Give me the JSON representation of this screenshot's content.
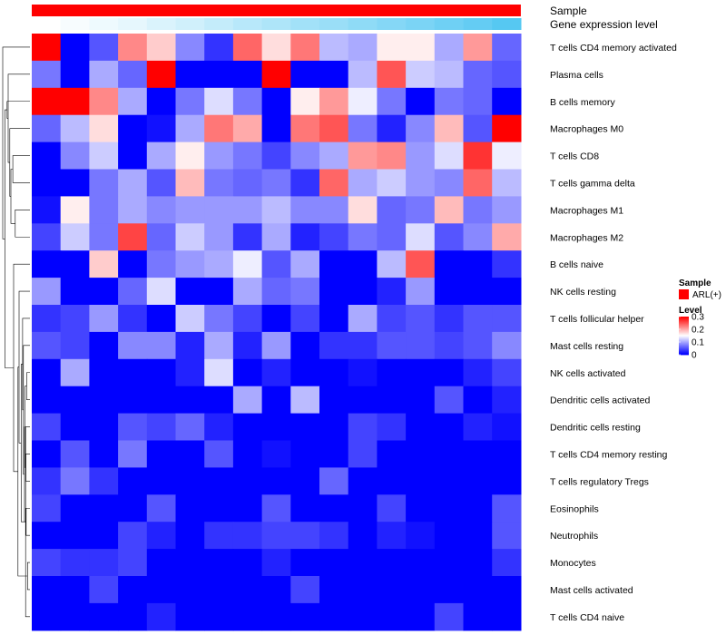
{
  "chart_data": {
    "type": "heatmap",
    "title": "",
    "xlabel": "",
    "ylabel": "",
    "rows": [
      "T cells CD4 memory activated",
      "Plasma cells",
      "B cells memory",
      "Macrophages M0",
      "T cells CD8",
      "T cells gamma delta",
      "Macrophages M1",
      "Macrophages M2",
      "B cells naive",
      "NK cells resting",
      "T cells follicular helper",
      "Mast cells resting",
      "NK cells activated",
      "Dendritic cells activated",
      "Dendritic cells resting",
      "T cells CD4 memory resting",
      "T cells regulatory  Tregs",
      "Eosinophils",
      "Neutrophils",
      "Monocytes",
      "Mast cells activated",
      "T cells CD4 naive"
    ],
    "n_columns": 17,
    "values": [
      [
        0.3,
        0.0,
        0.05,
        0.22,
        0.18,
        0.08,
        0.03,
        0.24,
        0.17,
        0.23,
        0.11,
        0.1,
        0.16,
        0.16,
        0.1,
        0.21,
        0.06
      ],
      [
        0.07,
        0.0,
        0.1,
        0.06,
        0.3,
        0.0,
        0.0,
        0.0,
        0.3,
        0.0,
        0.0,
        0.11,
        0.25,
        0.12,
        0.11,
        0.06,
        0.05
      ],
      [
        0.3,
        0.3,
        0.22,
        0.1,
        0.0,
        0.07,
        0.13,
        0.07,
        0.0,
        0.16,
        0.21,
        0.14,
        0.07,
        0.0,
        0.07,
        0.06,
        0.0
      ],
      [
        0.06,
        0.11,
        0.17,
        0.0,
        0.01,
        0.1,
        0.23,
        0.2,
        0.0,
        0.23,
        0.25,
        0.07,
        0.02,
        0.08,
        0.19,
        0.05,
        0.3
      ],
      [
        0.0,
        0.08,
        0.12,
        0.0,
        0.1,
        0.16,
        0.09,
        0.07,
        0.04,
        0.08,
        0.1,
        0.21,
        0.22,
        0.09,
        0.13,
        0.27,
        0.14
      ],
      [
        0.0,
        0.0,
        0.07,
        0.1,
        0.05,
        0.19,
        0.07,
        0.06,
        0.07,
        0.03,
        0.24,
        0.1,
        0.12,
        0.09,
        0.08,
        0.24,
        0.11
      ],
      [
        0.01,
        0.16,
        0.07,
        0.1,
        0.08,
        0.09,
        0.09,
        0.09,
        0.11,
        0.08,
        0.08,
        0.17,
        0.06,
        0.07,
        0.19,
        0.07,
        0.09
      ],
      [
        0.04,
        0.12,
        0.07,
        0.26,
        0.06,
        0.12,
        0.09,
        0.03,
        0.1,
        0.02,
        0.04,
        0.07,
        0.06,
        0.13,
        0.05,
        0.08,
        0.2
      ],
      [
        0.0,
        0.0,
        0.18,
        0.0,
        0.07,
        0.09,
        0.1,
        0.14,
        0.05,
        0.1,
        0.0,
        0.0,
        0.11,
        0.25,
        0.0,
        0.0,
        0.03
      ],
      [
        0.09,
        0.0,
        0.0,
        0.06,
        0.13,
        0.0,
        0.0,
        0.1,
        0.06,
        0.07,
        0.0,
        0.0,
        0.02,
        0.09,
        0.0,
        0.0,
        0.0
      ],
      [
        0.03,
        0.04,
        0.09,
        0.03,
        0.0,
        0.12,
        0.07,
        0.04,
        0.0,
        0.04,
        0.0,
        0.1,
        0.04,
        0.05,
        0.03,
        0.05,
        0.05
      ],
      [
        0.05,
        0.04,
        0.0,
        0.08,
        0.08,
        0.02,
        0.1,
        0.02,
        0.09,
        0.0,
        0.03,
        0.03,
        0.05,
        0.05,
        0.04,
        0.05,
        0.08
      ],
      [
        0.0,
        0.1,
        0.0,
        0.0,
        0.0,
        0.02,
        0.13,
        0.0,
        0.02,
        0.0,
        0.0,
        0.01,
        0.0,
        0.0,
        0.0,
        0.02,
        0.04
      ],
      [
        0.0,
        0.0,
        0.0,
        0.0,
        0.0,
        0.0,
        0.0,
        0.1,
        0.0,
        0.11,
        0.0,
        0.0,
        0.0,
        0.0,
        0.05,
        0.0,
        0.02
      ],
      [
        0.04,
        0.0,
        0.0,
        0.05,
        0.04,
        0.06,
        0.02,
        0.0,
        0.0,
        0.0,
        0.0,
        0.04,
        0.03,
        0.0,
        0.0,
        0.02,
        0.01
      ],
      [
        0.0,
        0.05,
        0.0,
        0.07,
        0.0,
        0.0,
        0.05,
        0.0,
        0.01,
        0.0,
        0.0,
        0.04,
        0.0,
        0.0,
        0.0,
        0.0,
        0.0
      ],
      [
        0.03,
        0.07,
        0.03,
        0.0,
        0.0,
        0.0,
        0.0,
        0.0,
        0.0,
        0.0,
        0.06,
        0.0,
        0.0,
        0.0,
        0.0,
        0.0,
        0.0
      ],
      [
        0.04,
        0.0,
        0.0,
        0.0,
        0.05,
        0.0,
        0.0,
        0.0,
        0.05,
        0.0,
        0.0,
        0.0,
        0.04,
        0.0,
        0.0,
        0.0,
        0.05
      ],
      [
        0.0,
        0.0,
        0.0,
        0.04,
        0.02,
        0.0,
        0.03,
        0.03,
        0.04,
        0.04,
        0.03,
        0.0,
        0.02,
        0.01,
        0.0,
        0.0,
        0.05
      ],
      [
        0.04,
        0.03,
        0.03,
        0.04,
        0.0,
        0.0,
        0.0,
        0.0,
        0.02,
        0.0,
        0.0,
        0.0,
        0.0,
        0.0,
        0.0,
        0.0,
        0.03
      ],
      [
        0.0,
        0.0,
        0.04,
        0.0,
        0.0,
        0.0,
        0.0,
        0.0,
        0.0,
        0.04,
        0.0,
        0.0,
        0.0,
        0.0,
        0.0,
        0.0,
        0.0
      ],
      [
        0.0,
        0.0,
        0.0,
        0.0,
        0.02,
        0.0,
        0.0,
        0.0,
        0.0,
        0.0,
        0.0,
        0.0,
        0.0,
        0.0,
        0.04,
        0.0,
        0.0
      ]
    ],
    "color_scale": {
      "min": 0,
      "mid": 0.15,
      "max": 0.3,
      "low": "#0000ff",
      "mid_color": "#ffffff",
      "high": "#ff0000"
    },
    "annotations": [
      {
        "name": "Sample",
        "color": "#ff0000"
      },
      {
        "name": "Gene expression level",
        "low_color": "#ffffff",
        "high_color": "#56c8f2",
        "values": [
          0.0,
          0.05,
          0.1,
          0.15,
          0.22,
          0.28,
          0.35,
          0.42,
          0.48,
          0.55,
          0.6,
          0.66,
          0.72,
          0.78,
          0.85,
          0.92,
          1.0
        ]
      }
    ],
    "legend": {
      "position": "right",
      "sample": {
        "title": "Sample",
        "label": "ARL(+)",
        "color": "#ff0000"
      },
      "level": {
        "title": "Level",
        "ticks": [
          0,
          0.1,
          0.2,
          0.3
        ],
        "tick_labels": [
          "0",
          "0.1",
          "0.2",
          "0.3"
        ]
      }
    },
    "dendrogram": {
      "side": "left",
      "merges": [
        [
          -20,
          -21
        ],
        [
          -13,
          -14
        ],
        [
          -18,
          -19
        ],
        [
          -16,
          -17
        ],
        [
          -15,
          -22
        ],
        [
          2,
          4
        ],
        [
          3,
          6
        ],
        [
          -12,
          7
        ],
        [
          -11,
          8
        ],
        [
          5,
          9
        ],
        [
          -10,
          10
        ],
        [
          1,
          11
        ],
        [
          -7,
          -8
        ],
        [
          -9,
          12
        ],
        [
          -5,
          -6
        ],
        [
          13,
          15
        ],
        [
          -4,
          16
        ],
        [
          -2,
          17
        ],
        [
          -3,
          18
        ],
        [
          14,
          19
        ],
        [
          -1,
          20
        ]
      ],
      "heights": [
        0.09,
        0.12,
        0.14,
        0.15,
        0.16,
        0.18,
        0.2,
        0.24,
        0.27,
        0.32,
        0.4,
        0.44,
        0.54,
        0.6,
        0.63,
        0.7,
        0.74,
        0.8,
        0.84,
        0.92,
        1.0
      ]
    }
  }
}
